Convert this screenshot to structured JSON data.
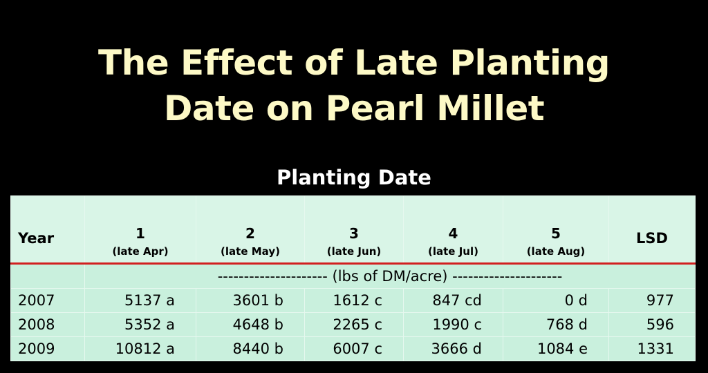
{
  "title": {
    "lines": [
      "The Effect of Late Planting",
      "Date on Pearl Millet"
    ]
  },
  "table": {
    "caption": "Planting Date",
    "header": {
      "first": "Year",
      "dates": [
        {
          "number": "1",
          "label": "(late Apr)"
        },
        {
          "number": "2",
          "label": "(late May)"
        },
        {
          "number": "3",
          "label": "(late Jun)"
        },
        {
          "number": "4",
          "label": "(late Jul)"
        },
        {
          "number": "5",
          "label": "(late Aug)"
        }
      ],
      "last": "LSD"
    },
    "units": "--------------------- (lbs of DM/acre) ---------------------",
    "rows": [
      [
        "2007",
        "5137 a",
        "3601 b",
        "1612 c",
        "847 cd",
        "0 d",
        "977"
      ],
      [
        "2008",
        "5352 a",
        "4648 b",
        "2265 c",
        "1990 c",
        "768 d",
        "596"
      ],
      [
        "2009",
        "10812 a",
        "8440 b",
        "6007 c",
        "3666 d",
        "1084 e",
        "1331"
      ]
    ]
  }
}
